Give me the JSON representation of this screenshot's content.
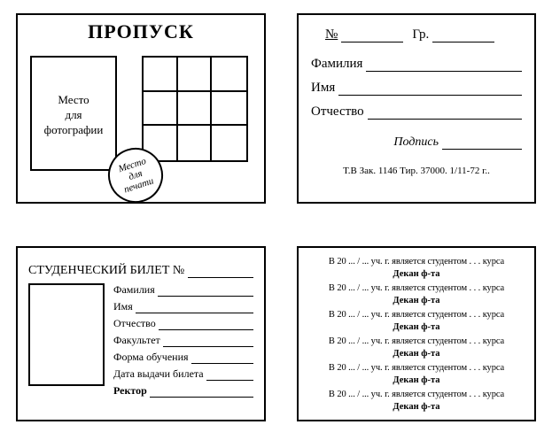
{
  "colors": {
    "border": "#000000",
    "bg": "#ffffff",
    "text": "#000000"
  },
  "card1": {
    "title": "ПРОПУСК",
    "photo_label_l1": "Место",
    "photo_label_l2": "для",
    "photo_label_l3": "фотографии",
    "stamp_l1": "Место",
    "stamp_l2": "для",
    "stamp_l3": "печати"
  },
  "card2": {
    "no_label": "№",
    "gr_label": "Гр.",
    "surname": "Фамилия",
    "name": "Имя",
    "patronymic": "Отчество",
    "signature": "Подпись",
    "footer": "Т.В Зак. 1146 Тир. 37000. 1/11-72 г.."
  },
  "card3": {
    "title": "СТУДЕНЧЕСКИЙ БИЛЕТ №",
    "fields": [
      "Фамилия",
      "Имя",
      "Отчество",
      "Факультет",
      "Форма обучения",
      "Дата выдачи билета"
    ],
    "rector": "Ректор"
  },
  "card4": {
    "year_line": "В 20 ... / ... уч. г. является студентом . . . курса",
    "dean": "Декан ф-та",
    "rows": 6
  }
}
